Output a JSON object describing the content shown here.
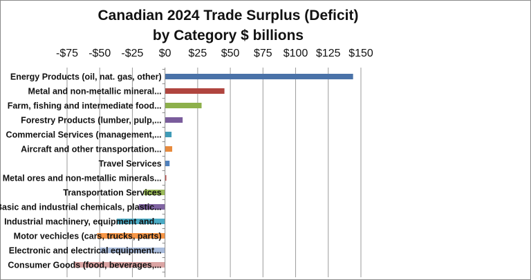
{
  "chart_data": {
    "type": "bar",
    "orientation": "horizontal",
    "title": "Canadian 2024 Trade Surplus (Deficit) by Category $ billions",
    "title_lines": [
      "Canadian 2024 Trade Surplus (Deficit)",
      "by Category $ billions"
    ],
    "xlim": [
      -75,
      150
    ],
    "x_ticks": [
      -75,
      -50,
      -25,
      0,
      25,
      50,
      75,
      100,
      125,
      150
    ],
    "x_tick_labels": [
      "-$75",
      "-$50",
      "-$25",
      "$0",
      "$25",
      "$50",
      "$75",
      "$100",
      "$125",
      "$150"
    ],
    "x_axis_position": "top",
    "grid": "vertical major gridlines",
    "categories": [
      "Energy Products (oil, nat. gas, other)",
      "Metal and non-metallic mineral...",
      "Farm, fishing and intermediate food...",
      "Forestry Products (lumber, pulp,...",
      "Commercial Services (management,...",
      "Aircraft and other transportation...",
      "Travel Services",
      "Metal ores and non-metallic minerals...",
      "Transportation Services",
      "Basic and industrial chemicals, plastic...",
      "Industrial machinery, equipment and...",
      "Motor vechicles (cars, trucks, parts)",
      "Electronic and electrical equipment...",
      "Consumer Goods (food, beverages,..."
    ],
    "values": [
      144,
      45.5,
      28,
      13.5,
      5,
      5.5,
      3.5,
      1,
      -16,
      -20,
      -37,
      -52,
      -50,
      -69
    ],
    "colors": [
      "#4a72a8",
      "#b0453f",
      "#8db04b",
      "#7a5c9c",
      "#3f9bb7",
      "#e88a3c",
      "#4f81bd",
      "#c0504d",
      "#9bbb59",
      "#8064a2",
      "#4bacc6",
      "#f79646",
      "#a9bcdc",
      "#dba5a4"
    ]
  }
}
